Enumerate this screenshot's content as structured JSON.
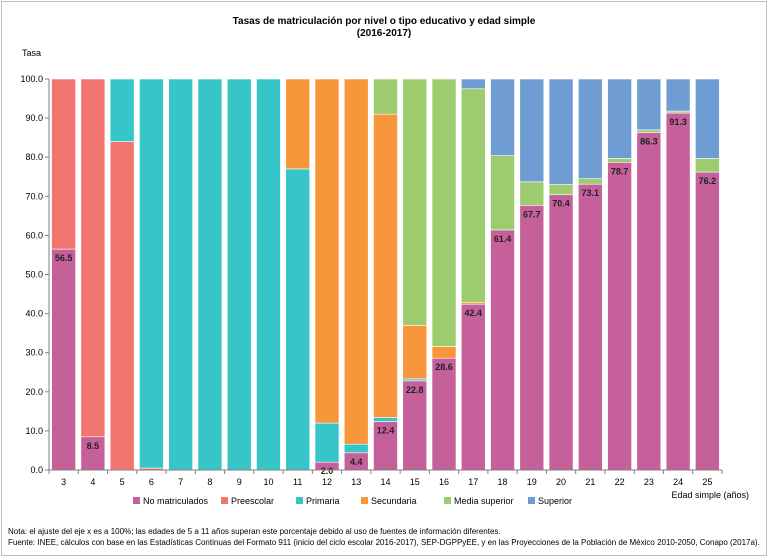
{
  "chart_data": {
    "type": "bar",
    "stacked": true,
    "title": "Tasas de matriculación por nivel o tipo educativo y edad simple",
    "subtitle": "(2016-2017)",
    "ylabel": "Tasa",
    "xlabel": "Edad simple (años)",
    "ylim": [
      0,
      100
    ],
    "yticks": [
      "0.0",
      "10.0",
      "20.0",
      "30.0",
      "40.0",
      "50.0",
      "60.0",
      "70.0",
      "80.0",
      "90.0",
      "100.0"
    ],
    "grid": false,
    "legend_position": "bottom",
    "categories": [
      "3",
      "4",
      "5",
      "6",
      "7",
      "8",
      "9",
      "10",
      "11",
      "12",
      "13",
      "14",
      "15",
      "16",
      "17",
      "18",
      "19",
      "20",
      "21",
      "22",
      "23",
      "24",
      "25"
    ],
    "series": [
      {
        "name": "No matriculados",
        "color": "#c5609a",
        "values": [
          56.5,
          8.5,
          0,
          0,
          0,
          0,
          0,
          0,
          0,
          2.0,
          4.4,
          12.4,
          22.8,
          28.6,
          42.4,
          61.4,
          67.7,
          70.4,
          73.1,
          78.7,
          86.3,
          91.3,
          76.2
        ],
        "labels": [
          "56.5",
          "8.5",
          "",
          "",
          "",
          "",
          "",
          "",
          "",
          "2.0",
          "4.4",
          "12.4",
          "22.8",
          "28.6",
          "42.4",
          "61.4",
          "67.7",
          "70.4",
          "73.1",
          "78.7",
          "86.3",
          "91.3",
          "76.2"
        ]
      },
      {
        "name": "Preescolar",
        "color": "#f37570",
        "values": [
          43.5,
          91.5,
          84.0,
          0.5,
          0,
          0,
          0,
          0,
          0,
          0,
          0,
          0,
          0,
          0,
          0,
          0,
          0,
          0,
          0,
          0,
          0,
          0,
          0
        ]
      },
      {
        "name": "Primaria",
        "color": "#36c6c8",
        "values": [
          0,
          0,
          16.0,
          99.5,
          100,
          100,
          100,
          100,
          77.0,
          10.0,
          2.2,
          1.0,
          0.5,
          0,
          0,
          0,
          0,
          0,
          0,
          0,
          0,
          0,
          0
        ]
      },
      {
        "name": "Secundaria",
        "color": "#f7963a",
        "values": [
          0,
          0,
          0,
          0,
          0,
          0,
          0,
          0,
          23.0,
          88.0,
          93.4,
          77.6,
          13.7,
          3.0,
          0.5,
          0,
          0,
          0,
          0,
          0,
          0,
          0,
          0
        ]
      },
      {
        "name": "Media superior",
        "color": "#9dcc6e",
        "values": [
          0,
          0,
          0,
          0,
          0,
          0,
          0,
          0,
          0,
          0,
          0,
          9.0,
          63.0,
          68.4,
          54.6,
          19.0,
          6.0,
          2.6,
          1.4,
          1.0,
          0.7,
          0.5,
          3.5
        ]
      },
      {
        "name": "Superior",
        "color": "#6f9dd3",
        "values": [
          0,
          0,
          0,
          0,
          0,
          0,
          0,
          0,
          0,
          0,
          0,
          0,
          0,
          0,
          2.5,
          19.6,
          26.3,
          27.0,
          25.5,
          20.3,
          13.0,
          8.2,
          20.3
        ]
      }
    ]
  },
  "notes": {
    "line1": "Nota: el ajuste del eje x es a 100%; las edades de 5 a 11 años superan este porcentaje debido al uso de fuentes de información diferentes.",
    "line2": "Fuente: INEE, cálculos con base en las Estadísticas Continuas del Formato 911 (inicio del ciclo escolar 2016-2017),  SEP-DGPPyEE, y en las Proyecciones de la Población de México 2010-2050,  Conapo (2017a)."
  }
}
